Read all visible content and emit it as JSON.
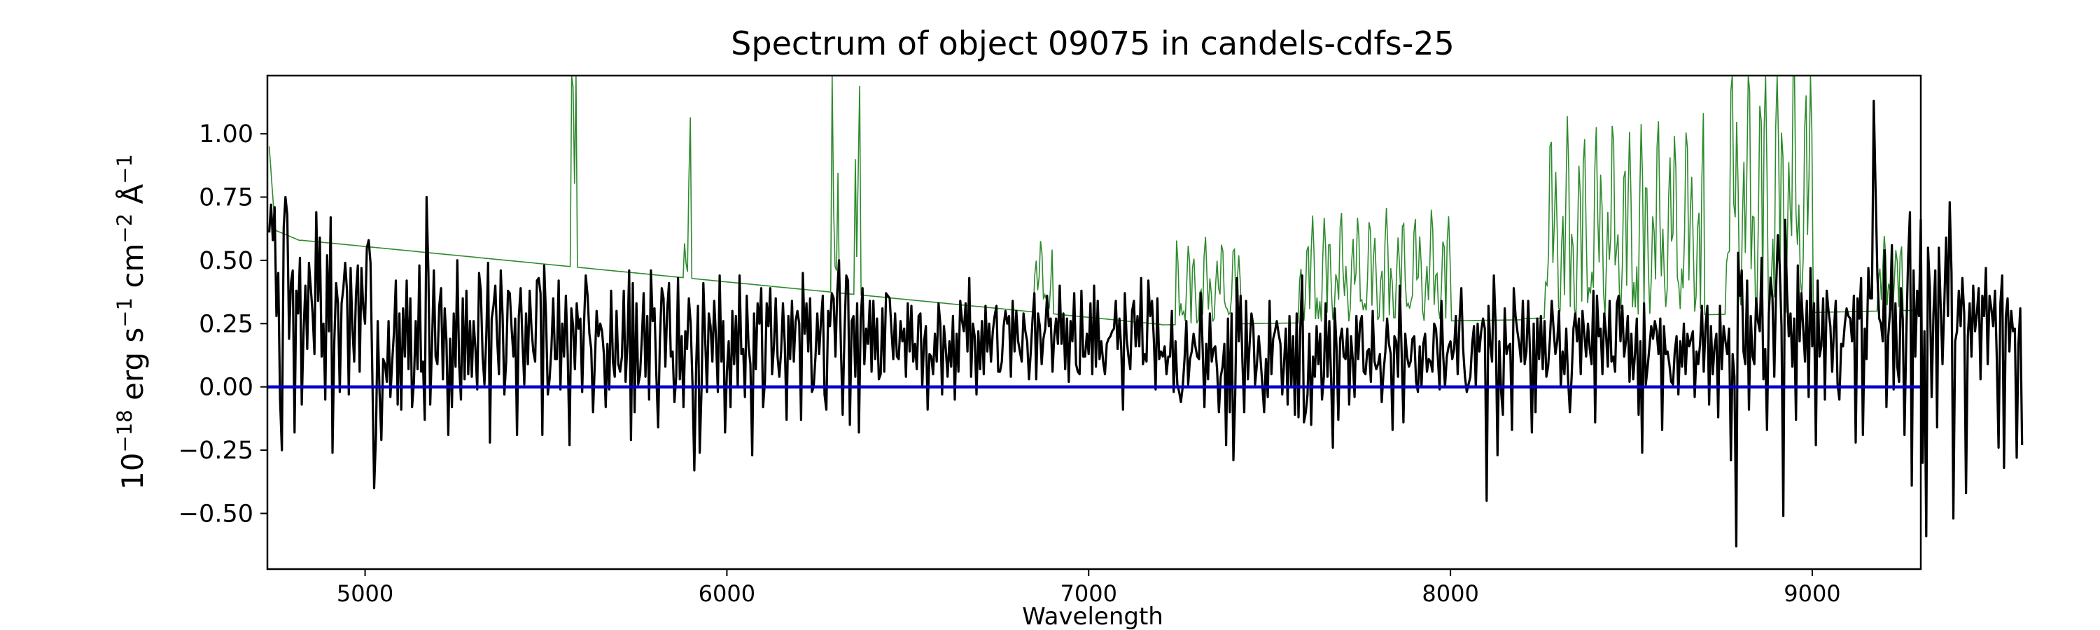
{
  "chart_data": {
    "type": "line",
    "title": "Spectrum of object 09075 in candels-cdfs-25",
    "xlabel": "Wavelength",
    "ylabel_parts": {
      "base": "10",
      "exponent": "−18",
      "unit_erg": "erg",
      "unit_s": "s",
      "exp_s": "−1",
      "unit_cm": "cm",
      "exp_cm": "−2",
      "unit_A": "Å",
      "exp_A": "−1"
    },
    "xlim": [
      4730,
      9300
    ],
    "ylim": [
      -0.72,
      1.23
    ],
    "x_ticks": [
      5000,
      6000,
      7000,
      8000,
      9000
    ],
    "y_ticks": [
      -0.5,
      -0.25,
      0.0,
      0.25,
      0.5,
      0.75,
      1.0
    ],
    "y_tick_labels": [
      "−0.50",
      "−0.25",
      "0.00",
      "0.25",
      "0.50",
      "0.75",
      "1.00"
    ],
    "grid": false,
    "series": [
      {
        "role": "flux",
        "color": "#000000",
        "x_start": 4735,
        "x_step": 5,
        "values": [
          0.61,
          0.72,
          0.58,
          0.71,
          0.28,
          0.45,
          -0.05,
          -0.25,
          0.63,
          0.75,
          0.68,
          0.19,
          0.41,
          0.46,
          -0.18,
          0.38,
          0.29,
          0.51,
          -0.07,
          0.22,
          0.4,
          0.15,
          0.49,
          0.39,
          0.29,
          0.13,
          0.69,
          0.34,
          0.59,
          0.12,
          0.25,
          -0.05,
          0.52,
          0.22,
          0.67,
          -0.26,
          0.18,
          0.41,
          0.33,
          -0.02,
          0.33,
          0.39,
          0.49,
          0.38,
          -0.03,
          0.47,
          0.23,
          0.1,
          0.37,
          0.48,
          0.06,
          0.47,
          0.31,
          0.25,
          0.55,
          0.58,
          0.49,
          0.05,
          -0.4,
          -0.19,
          0.26,
          -0.02,
          -0.21,
          0.11,
          0.09,
          0.02,
          0.26,
          -0.04,
          0.1,
          0.22,
          0.42,
          -0.07,
          0.29,
          -0.09,
          0.31,
          0.12,
          0.42,
          0.07,
          0.35,
          -0.08,
          0.02,
          0.26,
          0.07,
          0.48,
          0.06,
          0.1,
          -0.13,
          0.75,
          0.45,
          -0.07,
          0.17,
          0.46,
          0.12,
          0.09,
          0.32,
          0.39,
          0.03,
          0.31,
          0.18,
          -0.19,
          0.19,
          -0.08,
          0.29,
          0.08,
          0.5,
          0.09,
          -0.05,
          0.35,
          0.03,
          0.38,
          0.05,
          0.26,
          0.04,
          0.26,
          0.15,
          -0.01,
          0.45,
          0.38,
          0.12,
          0.01,
          0.2,
          0.49,
          -0.22,
          0.27,
          0.32,
          0.4,
          0.19,
          0.05,
          0.46,
          0.28,
          -0.03,
          0.1,
          0.38,
          0.37,
          0.23,
          0.12,
          0.27,
          -0.19,
          0.28,
          0.39,
          0.18,
          0.01,
          0.29,
          0.09,
          0.38,
          0.23,
          0.14,
          0.1,
          0.42,
          0.43,
          0.37,
          -0.19,
          0.48,
          0.28,
          -0.03,
          0.03,
          0.15,
          0.35,
          0.11,
          0.11,
          0.42,
          -0.01,
          0.25,
          0.12,
          0.36,
          0.13,
          -0.23,
          0.31,
          0.24,
          0.07,
          0.33,
          0.23,
          0.27,
          -0.02,
          0.24,
          0.44,
          0.36,
          0.21,
          0.15,
          -0.1,
          0.09,
          0.3,
          0.2,
          0.25,
          0.22,
          0.13,
          -0.08,
          0.17,
          -0.01,
          0.38,
          0.1,
          0.04,
          0.3,
          0.09,
          0.06,
          0.12,
          0.38,
          0.02,
          0.17,
          0.46,
          -0.21,
          0.41,
          -0.1,
          0.33,
          0.01,
          0.05,
          0.19,
          0.37,
          0.04,
          0.28,
          -0.05,
          0.46,
          0.26,
          0.31,
          0.05,
          -0.16,
          0.19,
          0.39,
          0.35,
          0.08,
          0.3,
          0.41,
          0.12,
          0.14,
          -0.06,
          0.04,
          0.43,
          0.03,
          0.2,
          -0.08,
          0.22,
          0.15,
          0.35,
          0.25,
          0.01,
          -0.33,
          0.08,
          0.32,
          -0.26,
          -0.01,
          0.41,
          0.19,
          -0.02,
          0.29,
          0.24,
          0.1,
          0.34,
          0.19,
          -0.02,
          0.44,
          0.1,
          0.26,
          -0.18,
          0.06,
          0.18,
          -0.08,
          0.3,
          0.09,
          0.28,
          0.0,
          0.44,
          0.13,
          0.15,
          -0.04,
          0.36,
          0.16,
          0.09,
          -0.27,
          0.29,
          0.07,
          0.33,
          0.25,
          0.39,
          -0.08,
          0.02,
          0.33,
          0.24,
          0.39,
          0.05,
          0.16,
          0.35,
          0.12,
          0.04,
          0.14,
          0.33,
          0.17,
          -0.13,
          0.28,
          0.11,
          0.34,
          0.1,
          0.26,
          0.3,
          0.25,
          -0.13,
          0.45,
          0.21,
          0.33,
          0.14,
          0.35,
          -0.02,
          0.0,
          0.12,
          0.29,
          0.13,
          0.26,
          0.36,
          -0.03,
          -0.09,
          0.3,
          0.24,
          0.37,
          0.35,
          0.12,
          0.37,
          0.5,
          0.17,
          -0.11,
          0.21,
          0.44,
          0.42,
          -0.15,
          0.26,
          0.28,
          0.04,
          0.33,
          -0.18,
          0.27,
          0.39,
          0.09,
          0.23,
          0.17,
          0.34,
          0.06,
          0.34,
          0.11,
          0.27,
          0.03,
          0.05,
          0.31,
          0.06,
          0.37,
          0.36,
          0.35,
          0.22,
          0.11,
          0.29,
          0.12,
          0.11,
          0.26,
          0.18,
          0.23,
          0.04,
          0.33,
          0.14,
          0.32,
          0.1,
          0.17,
          0.07,
          0.28,
          0.29,
          0.0,
          0.18,
          0.24,
          -0.09,
          0.13,
          0.12,
          0.05,
          0.21,
          0.1,
          0.33,
          0.25,
          -0.03,
          0.24,
          0.15,
          0.04,
          0.18,
          0.08,
          0.28,
          -0.05,
          0.21,
          0.06,
          0.34,
          0.26,
          0.22,
          0.33,
          0.14,
          0.43,
          0.04,
          0.25,
          0.2,
          -0.03,
          0.22,
          0.07,
          0.26,
          0.05,
          0.32,
          0.14,
          0.25,
          0.1,
          0.22,
          0.28,
          0.32,
          0.06,
          0.06,
          0.1,
          0.24,
          0.3,
          0.25,
          0.28,
          0.04,
          0.34,
          0.14,
          0.3,
          0.18,
          0.14,
          0.1,
          0.29,
          0.22,
          0.18,
          0.03,
          0.14,
          0.27,
          0.37,
          0.03,
          0.29,
          0.24,
          0.09,
          0.19,
          0.23,
          0.36,
          0.24,
          0.27,
          0.06,
          0.2,
          0.27,
          0.17,
          0.4,
          0.17,
          0.29,
          0.07,
          0.27,
          0.02,
          0.26,
          0.18,
          0.37,
          0.09,
          0.06,
          0.05,
          0.38,
          0.12,
          0.12,
          0.21,
          0.13,
          0.33,
          0.05,
          0.4,
          0.08,
          0.34,
          0.11,
          0.18,
          0.1,
          0.05,
          0.17,
          0.19,
          0.2,
          0.22,
          0.23,
          0.34,
          0.15,
          0.27,
          0.15,
          -0.09,
          0.37,
          0.19,
          0.12,
          0.07,
          0.3,
          0.34,
          0.16,
          0.28,
          0.16,
          0.43,
          0.09,
          0.13,
          0.1,
          0.42,
          0.28,
          0.34,
          0.19,
          -0.01,
          0.35,
          0.11,
          0.14,
          0.12,
          0.16,
          0.05,
          0.12,
          0.12,
          0.3,
          -0.02,
          0.18,
          0.01,
          -0.02,
          -0.06,
          0.0,
          0.11,
          0.26,
          0.01,
          0.11,
          0.14,
          0.21,
          0.16,
          0.12,
          0.11,
          0.37,
          0.15,
          -0.08,
          0.17,
          0.03,
          0.29,
          0.1,
          0.15,
          0.16,
          0.07,
          -0.1,
          0.04,
          0.08,
          0.17,
          -0.23,
          0.27,
          -0.1,
          0.29,
          -0.29,
          -0.03,
          0.43,
          0.18,
          0.36,
          0.1,
          -0.1,
          0.34,
          0.03,
          0.17,
          0.29,
          0.24,
          0.01,
          0.09,
          0.2,
          0.11,
          0.01,
          -0.1,
          0.11,
          -0.04,
          0.34,
          0.05,
          0.19,
          0.22,
          0.26,
          0.21,
          0.17,
          -0.03,
          0.09,
          0.23,
          -0.07,
          0.28,
          0.0,
          0.2,
          -0.11,
          0.29,
          -0.12,
          0.23,
          0.44,
          -0.14,
          -0.1,
          -0.03,
          0.21,
          -0.15,
          0.12,
          0.04,
          0.24,
          0.09,
          0.21,
          -0.05,
          0.04,
          0.33,
          0.04,
          0.26,
          0.04,
          -0.24,
          0.31,
          0.16,
          -0.13,
          0.19,
          0.23,
          0.12,
          0.11,
          0.23,
          -0.07,
          0.2,
          0.11,
          -0.04,
          0.28,
          0.11,
          0.25,
          0.28,
          0.06,
          0.05,
          0.14,
          0.15,
          0.02,
          0.3,
          0.1,
          0.07,
          0.09,
          0.13,
          -0.06,
          0.06,
          0.14,
          0.27,
          0.17,
          0.13,
          -0.17,
          0.2,
          0.18,
          0.04,
          0.4,
          0.14,
          -0.14,
          0.21,
          0.12,
          0.08,
          0.1,
          0.19,
          0.2,
          0.02,
          -0.02,
          0.16,
          0.0,
          0.17,
          0.21,
          0.06,
          0.11,
          0.1,
          0.06,
          0.25,
          0.23,
          0.12,
          -0.01,
          0.34,
          0.12,
          0.0,
          0.12,
          0.16,
          0.18,
          0.11,
          0.15,
          0.28,
          0.05,
          0.26,
          0.39,
          0.15,
          0.04,
          -0.02,
          0.01,
          0.04,
          0.17,
          0.24,
          0.0,
          0.25,
          0.14,
          0.22,
          0.27,
          0.23,
          -0.45,
          0.32,
          0.17,
          0.1,
          0.44,
          0.24,
          -0.27,
          0.18,
          -0.02,
          -0.11,
          0.31,
          0.13,
          0.16,
          0.17,
          -0.17,
          0.39,
          0.28,
          0.22,
          0.17,
          0.1,
          0.34,
          0.09,
          0.14,
          0.34,
          0.13,
          -0.18,
          0.25,
          -0.1,
          0.27,
          0.11,
          0.28,
          0.07,
          0.26,
          0.04,
          0.08,
          0.19,
          0.34,
          0.23,
          0.13,
          0.18,
          0.3,
          0.0,
          0.14,
          0.05,
          0.23,
          0.03,
          -0.1,
          0.04,
          0.23,
          0.29,
          0.18,
          0.27,
          0.05,
          0.3,
          0.21,
          0.12,
          0.25,
          0.15,
          0.09,
          0.38,
          -0.14,
          0.36,
          0.2,
          0.23,
          0.05,
          0.29,
          0.21,
          0.08,
          0.34,
          0.1,
          0.12,
          0.06,
          0.33,
          0.36,
          0.18,
          0.32,
          0.12,
          0.18,
          0.28,
          0.02,
          0.21,
          0.03,
          0.13,
          0.27,
          -0.11,
          0.18,
          -0.26,
          0.33,
          0.01,
          0.08,
          0.16,
          0.24,
          0.19,
          0.26,
          0.22,
          0.13,
          0.27,
          -0.17,
          0.24,
          0.13,
          0.14,
          0.09,
          0.02,
          0.01,
          0.14,
          0.2,
          -0.03,
          0.18,
          0.08,
          0.25,
          0.05,
          0.21,
          0.16,
          0.19,
          0.22,
          -0.04,
          0.14,
          0.09,
          0.17,
          0.32,
          0.06,
          0.24,
          0.32,
          -0.07,
          0.24,
          0.05,
          0.16,
          0.21,
          -0.12,
          0.32,
          0.07,
          0.24,
          0.18,
          0.13,
          0.23,
          -0.29,
          0.13,
          0.04,
          -0.63,
          0.53,
          0.36,
          0.46,
          0.14,
          0.09,
          0.42,
          -0.09,
          0.28,
          0.12,
          0.09,
          0.35,
          0.26,
          0.22,
          0.51,
          0.03,
          0.15,
          -0.17,
          0.29,
          0.43,
          0.35,
          0.04,
          0.39,
          0.6,
          0.48,
          0.24,
          -0.51,
          0.66,
          0.38,
          0.2,
          0.29,
          0.08,
          0.27,
          -0.13,
          0.48,
          0.18,
          0.37,
          0.23,
          0.1,
          0.34,
          -0.04,
          0.47,
          0.16,
          0.33,
          -0.23,
          0.42,
          0.12,
          0.16,
          0.35,
          -0.05,
          0.38,
          0.3,
          0.24,
          0.06,
          0.23,
          0.34,
          0.01,
          -0.05,
          0.17,
          0.16,
          0.25,
          0.31,
          0.28,
          0.27,
          0.18,
          0.36,
          -0.22,
          0.35,
          0.27,
          0.43,
          -0.19,
          0.23,
          0.11,
          0.47,
          0.35,
          0.35,
          1.13,
          0.78,
          0.44,
          0.27,
          0.25,
          0.18,
          0.54,
          -0.08,
          0.2,
          0.3,
          0.56,
          -0.01,
          0.33,
          0.08,
          0.02,
          0.39,
          0.27,
          -0.19,
          0.2,
          0.51,
          0.69,
          -0.39,
          0.46,
          0.12,
          0.38,
          0.28,
          0.66,
          -0.3,
          0.22,
          -0.59,
          0.55,
          0.39,
          -0.04,
          0.29,
          0.46,
          -0.16,
          0.55,
          0.32,
          0.09,
          0.33,
          0.59,
          0.28,
          0.73,
          0.45,
          -0.52,
          0.18,
          0.22,
          0.38,
          0.24,
          0.43,
          0.29,
          -0.42,
          0.2,
          0.33,
          0.12,
          0.4,
          0.22,
          0.29,
          0.39,
          0.03,
          0.36,
          0.28,
          0.47,
          0.09,
          0.36,
          0.31,
          0.24,
          0.38,
          0.12,
          -0.24,
          0.33,
          0.44,
          -0.32,
          0.28,
          0.35,
          0.14,
          0.3,
          0.22,
          0.23,
          -0.28,
          0.17,
          0.31,
          -0.23
        ]
      },
      {
        "role": "error",
        "color": "#2e8b2e"
      },
      {
        "role": "zero",
        "color": "#0000cc",
        "values": [
          0.0,
          0.0
        ]
      }
    ]
  }
}
